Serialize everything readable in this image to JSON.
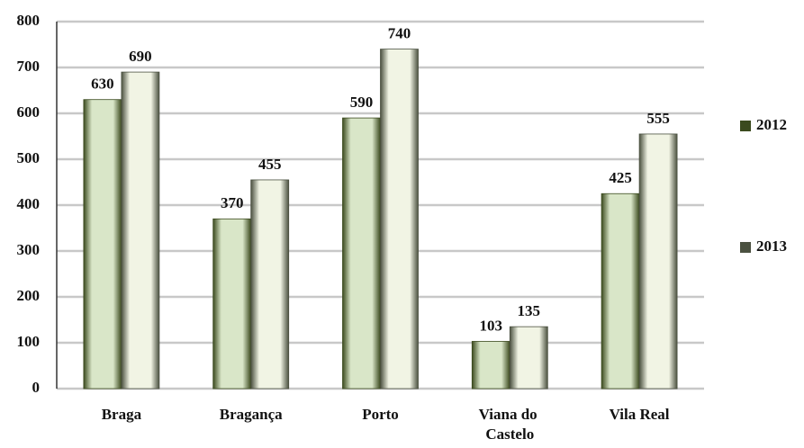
{
  "chart_data": {
    "type": "bar",
    "categories": [
      "Braga",
      "Bragança",
      "Porto",
      "Viana do Castelo",
      "Vila Real"
    ],
    "series": [
      {
        "name": "2012",
        "color": "#3b4a1e",
        "values": [
          630,
          370,
          590,
          103,
          425
        ]
      },
      {
        "name": "2013",
        "color": "#4b5140",
        "values": [
          690,
          455,
          740,
          135,
          555
        ]
      }
    ],
    "ylim": [
      0,
      800
    ],
    "yticks": [
      0,
      100,
      200,
      300,
      400,
      500,
      600,
      700,
      800
    ],
    "grid": true,
    "legend": "right"
  }
}
